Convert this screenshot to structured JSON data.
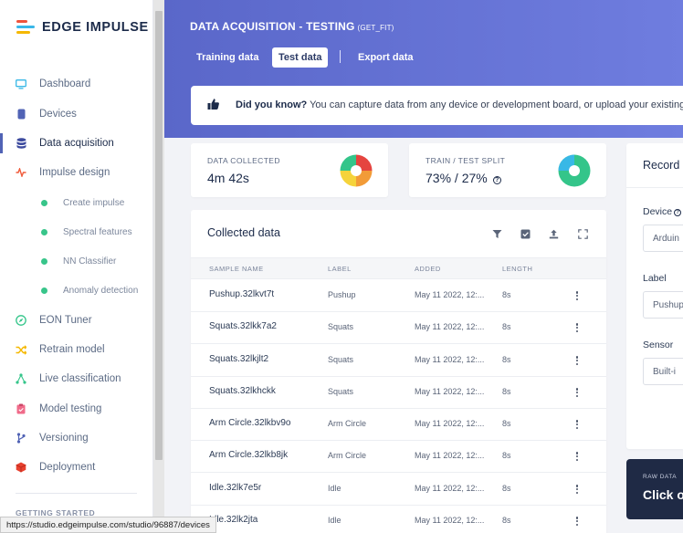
{
  "app": {
    "name": "EDGE IMPULSE"
  },
  "sidebar": {
    "items": [
      {
        "label": "Dashboard"
      },
      {
        "label": "Devices"
      },
      {
        "label": "Data acquisition"
      },
      {
        "label": "Impulse design"
      },
      {
        "label": "Create impulse"
      },
      {
        "label": "Spectral features"
      },
      {
        "label": "NN Classifier"
      },
      {
        "label": "Anomaly detection"
      },
      {
        "label": "EON Tuner"
      },
      {
        "label": "Retrain model"
      },
      {
        "label": "Live classification"
      },
      {
        "label": "Model testing"
      },
      {
        "label": "Versioning"
      },
      {
        "label": "Deployment"
      }
    ],
    "section": "GETTING STARTED"
  },
  "header": {
    "title": "DATA ACQUISITION - TESTING",
    "subtitle": "(GET_FIT)",
    "tabs": [
      {
        "label": "Training data"
      },
      {
        "label": "Test data"
      },
      {
        "label": "Export data"
      }
    ]
  },
  "tip": {
    "bold": "Did you know?",
    "text": " You can capture data from any device or development board, or upload your existing da"
  },
  "stats": {
    "collected": {
      "label": "DATA COLLECTED",
      "value": "4m 42s"
    },
    "split": {
      "label": "TRAIN / TEST SPLIT",
      "value": "73% / 27%"
    }
  },
  "collected": {
    "title": "Collected data",
    "columns": [
      "SAMPLE NAME",
      "LABEL",
      "ADDED",
      "LENGTH"
    ],
    "rows": [
      {
        "name": "Pushup.32lkvt7t",
        "label": "Pushup",
        "added": "May 11 2022, 12:...",
        "length": "8s"
      },
      {
        "name": "Squats.32lkk7a2",
        "label": "Squats",
        "added": "May 11 2022, 12:...",
        "length": "8s"
      },
      {
        "name": "Squats.32lkjlt2",
        "label": "Squats",
        "added": "May 11 2022, 12:...",
        "length": "8s"
      },
      {
        "name": "Squats.32lkhckk",
        "label": "Squats",
        "added": "May 11 2022, 12:...",
        "length": "8s"
      },
      {
        "name": "Arm Circle.32lkbv9o",
        "label": "Arm Circle",
        "added": "May 11 2022, 12:...",
        "length": "8s"
      },
      {
        "name": "Arm Circle.32lkb8jk",
        "label": "Arm Circle",
        "added": "May 11 2022, 12:...",
        "length": "8s"
      },
      {
        "name": "Idle.32lk7e5r",
        "label": "Idle",
        "added": "May 11 2022, 12:...",
        "length": "8s"
      },
      {
        "name": "Idle.32lk2jta",
        "label": "Idle",
        "added": "May 11 2022, 12:...",
        "length": "8s"
      }
    ]
  },
  "record": {
    "title": "Record",
    "device": {
      "label": "Device",
      "value": "Arduin"
    },
    "label": {
      "label": "Label",
      "value": "Pushup"
    },
    "sensor": {
      "label": "Sensor",
      "value": "Built-i"
    },
    "raw_title": "RAW DATA",
    "raw_action": "Click o"
  },
  "status_url": "https://studio.edgeimpulse.com/studio/96887/devices",
  "colors": {
    "brand": "#5a67c9",
    "pie_collected": [
      "#e5443f",
      "#f29b38",
      "#f5d33b",
      "#34c58a"
    ],
    "pie_split": [
      "#34c58a",
      "#38b8e6"
    ]
  }
}
